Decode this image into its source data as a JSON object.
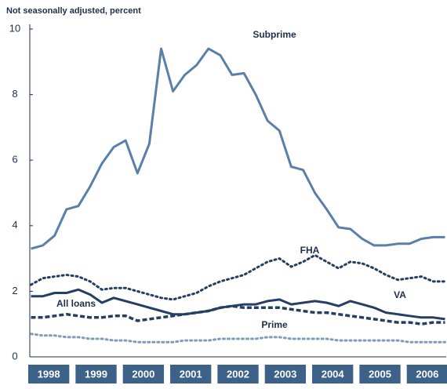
{
  "chart_data": {
    "type": "line",
    "subtitle": "Not seasonally adjusted, percent",
    "x": [
      1998.125,
      1998.375,
      1998.625,
      1998.875,
      1999.125,
      1999.375,
      1999.625,
      1999.875,
      2000.125,
      2000.375,
      2000.625,
      2000.875,
      2001.125,
      2001.375,
      2001.625,
      2001.875,
      2002.125,
      2002.375,
      2002.625,
      2002.875,
      2003.125,
      2003.375,
      2003.625,
      2003.875,
      2004.125,
      2004.375,
      2004.625,
      2004.875,
      2005.125,
      2005.375,
      2005.625,
      2005.875,
      2006.125,
      2006.375,
      2006.625,
      2006.875
    ],
    "xlim": [
      1998,
      2006.9
    ],
    "xticks": [
      1998,
      1999,
      2000,
      2001,
      2002,
      2003,
      2004,
      2005,
      2006
    ],
    "ylim": [
      0,
      10
    ],
    "yticks": [
      0,
      2,
      4,
      6,
      8,
      10
    ],
    "grid": false,
    "series": [
      {
        "name": "Subprime",
        "color": "#5a7fa8",
        "line_style": "solid",
        "values": [
          3.3,
          3.4,
          3.7,
          4.5,
          4.6,
          5.2,
          5.9,
          6.4,
          6.6,
          5.6,
          6.5,
          9.4,
          8.1,
          8.6,
          8.9,
          9.4,
          9.2,
          8.6,
          8.65,
          8.0,
          7.2,
          6.9,
          5.8,
          5.7,
          5.0,
          4.5,
          3.95,
          3.9,
          3.6,
          3.4,
          3.4,
          3.45,
          3.45,
          3.6,
          3.65,
          3.65
        ]
      },
      {
        "name": "FHA",
        "color": "#243f63",
        "line_style": "dotted",
        "values": [
          2.2,
          2.4,
          2.45,
          2.5,
          2.45,
          2.3,
          2.05,
          2.1,
          2.1,
          2.0,
          1.9,
          1.8,
          1.75,
          1.85,
          1.95,
          2.15,
          2.3,
          2.4,
          2.5,
          2.7,
          2.9,
          3.0,
          2.75,
          2.9,
          3.1,
          2.9,
          2.7,
          2.9,
          2.85,
          2.7,
          2.5,
          2.35,
          2.4,
          2.45,
          2.3,
          2.3
        ]
      },
      {
        "name": "VA",
        "color": "#243f63",
        "line_style": "dashed",
        "values": [
          1.2,
          1.2,
          1.25,
          1.3,
          1.25,
          1.2,
          1.2,
          1.25,
          1.25,
          1.1,
          1.15,
          1.2,
          1.25,
          1.3,
          1.35,
          1.4,
          1.5,
          1.55,
          1.5,
          1.5,
          1.5,
          1.5,
          1.45,
          1.4,
          1.35,
          1.35,
          1.3,
          1.25,
          1.2,
          1.15,
          1.1,
          1.05,
          1.05,
          1.0,
          1.05,
          1.05
        ]
      },
      {
        "name": "All loans",
        "color": "#243f63",
        "line_style": "solid",
        "values": [
          1.85,
          1.85,
          1.95,
          1.95,
          2.05,
          1.9,
          1.65,
          1.8,
          1.7,
          1.6,
          1.5,
          1.4,
          1.3,
          1.3,
          1.35,
          1.4,
          1.5,
          1.55,
          1.6,
          1.6,
          1.7,
          1.75,
          1.6,
          1.65,
          1.7,
          1.65,
          1.55,
          1.7,
          1.6,
          1.5,
          1.35,
          1.3,
          1.25,
          1.2,
          1.2,
          1.15
        ]
      },
      {
        "name": "Prime",
        "color": "#7f9bbd",
        "line_style": "dotted",
        "values": [
          0.7,
          0.65,
          0.65,
          0.6,
          0.6,
          0.55,
          0.55,
          0.5,
          0.5,
          0.45,
          0.45,
          0.45,
          0.45,
          0.5,
          0.5,
          0.5,
          0.55,
          0.55,
          0.55,
          0.55,
          0.6,
          0.6,
          0.55,
          0.55,
          0.55,
          0.55,
          0.5,
          0.5,
          0.5,
          0.5,
          0.5,
          0.5,
          0.45,
          0.45,
          0.45,
          0.45
        ]
      }
    ]
  }
}
